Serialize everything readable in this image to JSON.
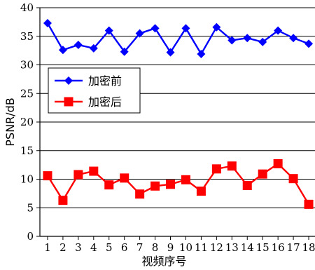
{
  "chart_data": {
    "type": "line",
    "title": "",
    "xlabel": "视频序号",
    "ylabel": "PSNR/dB",
    "x": [
      1,
      2,
      3,
      4,
      5,
      6,
      7,
      8,
      9,
      10,
      11,
      12,
      13,
      14,
      15,
      16,
      17,
      18
    ],
    "xlim": [
      0.5,
      18.5
    ],
    "ylim": [
      0,
      40
    ],
    "yticks": [
      0,
      5,
      10,
      15,
      20,
      25,
      30,
      35,
      40
    ],
    "grid": "horizontal",
    "legend": "upper-left",
    "series": [
      {
        "name": "加密前",
        "color": "#0000ff",
        "marker": "diamond",
        "values": [
          37.3,
          32.6,
          33.5,
          32.9,
          36.0,
          32.3,
          35.5,
          36.4,
          32.2,
          36.4,
          31.9,
          36.6,
          34.3,
          34.7,
          34.0,
          36.0,
          34.7,
          33.7
        ]
      },
      {
        "name": "加密后",
        "color": "#ff0000",
        "marker": "square",
        "values": [
          10.6,
          6.3,
          10.8,
          11.4,
          9.0,
          10.2,
          7.4,
          8.8,
          9.1,
          9.9,
          7.9,
          11.8,
          12.3,
          8.9,
          10.9,
          12.7,
          10.1,
          5.6
        ]
      }
    ]
  }
}
